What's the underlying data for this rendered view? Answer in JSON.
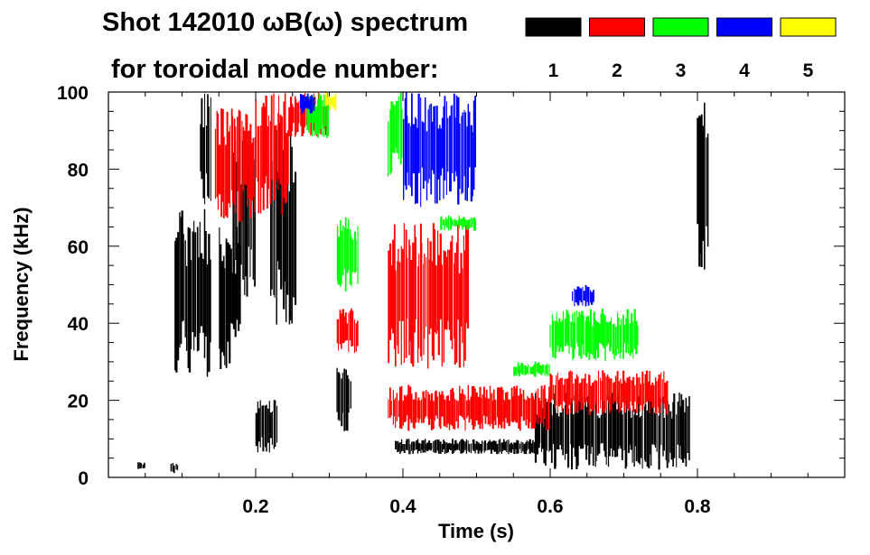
{
  "chart_data": {
    "type": "heatmap",
    "title": "Shot 142010 ωB(ω) spectrum",
    "subtitle": "for toroidal mode number:",
    "xlabel": "Time (s)",
    "ylabel": "Frequency (kHz)",
    "xlim": [
      0.0,
      1.0
    ],
    "ylim": [
      0,
      100
    ],
    "x_ticks": [
      {
        "value": 0.2,
        "label": "0.2"
      },
      {
        "value": 0.4,
        "label": "0.4"
      },
      {
        "value": 0.6,
        "label": "0.6"
      },
      {
        "value": 0.8,
        "label": "0.8"
      }
    ],
    "y_ticks": [
      {
        "value": 0,
        "label": "0"
      },
      {
        "value": 20,
        "label": "20"
      },
      {
        "value": 40,
        "label": "40"
      },
      {
        "value": 60,
        "label": "60"
      },
      {
        "value": 80,
        "label": "80"
      },
      {
        "value": 100,
        "label": "100"
      }
    ],
    "legend": [
      {
        "n": "1",
        "color": "#000000"
      },
      {
        "n": "2",
        "color": "#ff0000"
      },
      {
        "n": "3",
        "color": "#00ff00"
      },
      {
        "n": "4",
        "color": "#0000ff"
      },
      {
        "n": "5",
        "color": "#ffff00"
      }
    ],
    "regions": [
      {
        "mode": 1,
        "t": [
          0.09,
          0.14
        ],
        "f": [
          26,
          70
        ]
      },
      {
        "mode": 1,
        "t": [
          0.125,
          0.14
        ],
        "f": [
          70,
          100
        ]
      },
      {
        "mode": 1,
        "t": [
          0.15,
          0.18
        ],
        "f": [
          28,
          66
        ]
      },
      {
        "mode": 1,
        "t": [
          0.17,
          0.2
        ],
        "f": [
          46,
          90
        ]
      },
      {
        "mode": 1,
        "t": [
          0.2,
          0.23
        ],
        "f": [
          6,
          22
        ]
      },
      {
        "mode": 1,
        "t": [
          0.22,
          0.255
        ],
        "f": [
          38,
          92
        ]
      },
      {
        "mode": 1,
        "t": [
          0.31,
          0.33
        ],
        "f": [
          12,
          30
        ]
      },
      {
        "mode": 1,
        "t": [
          0.39,
          0.58
        ],
        "f": [
          6,
          10
        ]
      },
      {
        "mode": 1,
        "t": [
          0.58,
          0.79
        ],
        "f": [
          2,
          22
        ]
      },
      {
        "mode": 1,
        "t": [
          0.8,
          0.815
        ],
        "f": [
          52,
          100
        ]
      },
      {
        "mode": 1,
        "t": [
          0.04,
          0.05
        ],
        "f": [
          2,
          4
        ]
      },
      {
        "mode": 1,
        "t": [
          0.085,
          0.095
        ],
        "f": [
          1,
          4
        ]
      },
      {
        "mode": 2,
        "t": [
          0.145,
          0.2
        ],
        "f": [
          66,
          96
        ]
      },
      {
        "mode": 2,
        "t": [
          0.2,
          0.245
        ],
        "f": [
          68,
          100
        ]
      },
      {
        "mode": 2,
        "t": [
          0.245,
          0.3
        ],
        "f": [
          88,
          100
        ]
      },
      {
        "mode": 2,
        "t": [
          0.31,
          0.34
        ],
        "f": [
          32,
          44
        ]
      },
      {
        "mode": 2,
        "t": [
          0.38,
          0.49
        ],
        "f": [
          28,
          66
        ]
      },
      {
        "mode": 2,
        "t": [
          0.38,
          0.6
        ],
        "f": [
          12,
          24
        ]
      },
      {
        "mode": 2,
        "t": [
          0.6,
          0.76
        ],
        "f": [
          16,
          28
        ]
      },
      {
        "mode": 3,
        "t": [
          0.27,
          0.3
        ],
        "f": [
          88,
          100
        ]
      },
      {
        "mode": 3,
        "t": [
          0.31,
          0.34
        ],
        "f": [
          48,
          68
        ]
      },
      {
        "mode": 3,
        "t": [
          0.38,
          0.4
        ],
        "f": [
          78,
          100
        ]
      },
      {
        "mode": 3,
        "t": [
          0.45,
          0.5
        ],
        "f": [
          64,
          68
        ]
      },
      {
        "mode": 3,
        "t": [
          0.6,
          0.72
        ],
        "f": [
          30,
          44
        ]
      },
      {
        "mode": 3,
        "t": [
          0.55,
          0.6
        ],
        "f": [
          26,
          30
        ]
      },
      {
        "mode": 4,
        "t": [
          0.4,
          0.5
        ],
        "f": [
          70,
          100
        ]
      },
      {
        "mode": 4,
        "t": [
          0.26,
          0.28
        ],
        "f": [
          94,
          100
        ]
      },
      {
        "mode": 4,
        "t": [
          0.63,
          0.66
        ],
        "f": [
          44,
          50
        ]
      },
      {
        "mode": 5,
        "t": [
          0.295,
          0.31
        ],
        "f": [
          95,
          100
        ]
      }
    ]
  }
}
